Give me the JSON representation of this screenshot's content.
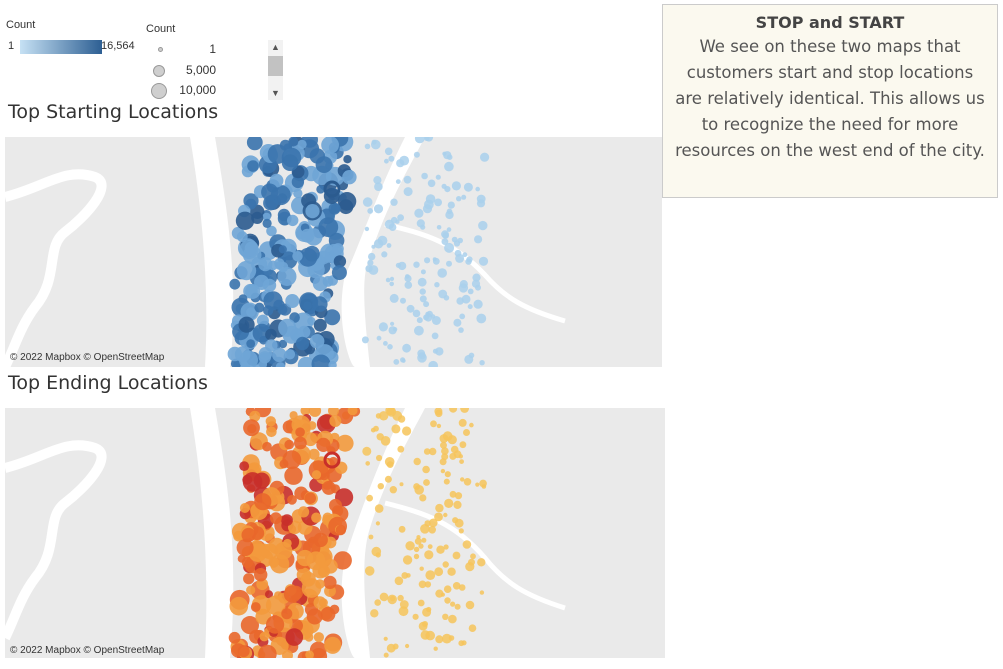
{
  "legend": {
    "color_label": "Count",
    "color_min": "1",
    "color_max": "16,564",
    "size_label": "Count",
    "size_items": [
      "1",
      "5,000",
      "10,000"
    ]
  },
  "maps": [
    {
      "title": "Top Starting Locations",
      "attribution": "© 2022 Mapbox © OpenStreetMap",
      "colors": {
        "light": "#a9d0ec",
        "mid": "#6fa5d6",
        "dark": "#3a73ad",
        "darkest": "#2b5b8f"
      }
    },
    {
      "title": "Top Ending Locations",
      "attribution": "© 2022 Mapbox © OpenStreetMap",
      "colors": {
        "light": "#f6c45a",
        "mid": "#f39a3d",
        "dark": "#e9672b",
        "darkest": "#c82f2a"
      }
    }
  ],
  "note": {
    "title": "STOP and START",
    "body": "We see on  these two maps that customers start and stop locations are relatively identical. This allows us to recognize the need for more resources on the west end of the city."
  }
}
